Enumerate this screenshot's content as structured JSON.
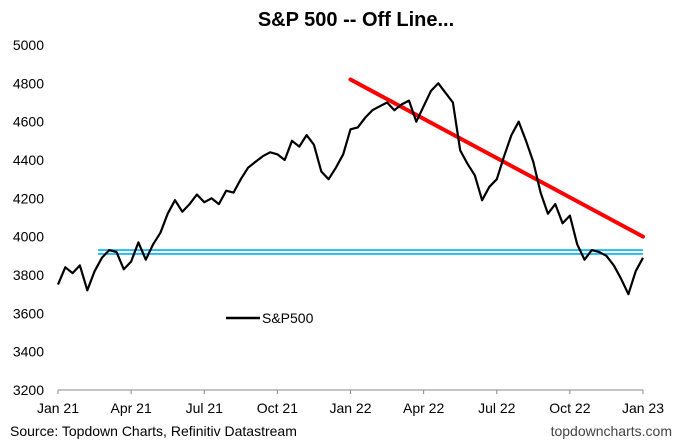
{
  "chart_data": {
    "type": "line",
    "title": "S&P 500 -- Off Line...",
    "ylim": [
      3200,
      5000
    ],
    "y_ticks": [
      5000,
      4800,
      4600,
      4400,
      4200,
      4000,
      3800,
      3600,
      3400,
      3200
    ],
    "x_ticks": [
      "Jan 21",
      "Apr 21",
      "Jul 21",
      "Oct 21",
      "Jan 22",
      "Apr 22",
      "Jul 22",
      "Oct 22",
      "Jan 23"
    ],
    "legend": {
      "position": "lower-left-inside"
    },
    "series": [
      {
        "name": "S&P500",
        "color": "#000000",
        "x": [
          0,
          0.3,
          0.6,
          0.9,
          1.2,
          1.5,
          1.8,
          2.1,
          2.4,
          2.7,
          3.0,
          3.3,
          3.6,
          3.9,
          4.2,
          4.5,
          4.8,
          5.1,
          5.4,
          5.7,
          6.0,
          6.3,
          6.6,
          6.9,
          7.2,
          7.5,
          7.8,
          8.1,
          8.4,
          8.7,
          9.0,
          9.3,
          9.6,
          9.9,
          10.2,
          10.5,
          10.8,
          11.1,
          11.4,
          11.7,
          12.0,
          12.3,
          12.6,
          12.9,
          13.2,
          13.5,
          13.8,
          14.1,
          14.4,
          14.7,
          15.0,
          15.3,
          15.6,
          15.9,
          16.2,
          16.5,
          16.8,
          17.1,
          17.4,
          17.7,
          18.0,
          18.3,
          18.6,
          18.9,
          19.2,
          19.5,
          19.8,
          20.1,
          20.4,
          20.7,
          21.0,
          21.3,
          21.6,
          21.9,
          22.2,
          22.5,
          22.8,
          23.1,
          23.4,
          23.7,
          24.0
        ],
        "values": [
          3750,
          3840,
          3810,
          3850,
          3720,
          3820,
          3890,
          3930,
          3920,
          3830,
          3870,
          3970,
          3880,
          3960,
          4020,
          4120,
          4190,
          4130,
          4170,
          4220,
          4180,
          4200,
          4170,
          4240,
          4230,
          4300,
          4360,
          4390,
          4420,
          4440,
          4430,
          4400,
          4500,
          4470,
          4530,
          4480,
          4340,
          4300,
          4360,
          4430,
          4560,
          4570,
          4620,
          4660,
          4680,
          4700,
          4660,
          4690,
          4710,
          4600,
          4680,
          4760,
          4800,
          4750,
          4700,
          4450,
          4380,
          4320,
          4190,
          4260,
          4300,
          4420,
          4530,
          4600,
          4500,
          4390,
          4230,
          4120,
          4170,
          4070,
          4110,
          3960,
          3880,
          3930,
          3920,
          3900,
          3850,
          3780,
          3700,
          3820,
          3890
        ]
      }
    ],
    "resistance_line": {
      "color": "#ff0000",
      "x": [
        12.0,
        24.0
      ],
      "values": [
        4820,
        4000
      ]
    },
    "support_band": {
      "color": "#00b0f0",
      "values": [
        3910,
        3930
      ]
    }
  },
  "footer": {
    "source": "Source: Topdown Charts, Refinitiv Datastream",
    "brand": "topdowncharts.com"
  }
}
